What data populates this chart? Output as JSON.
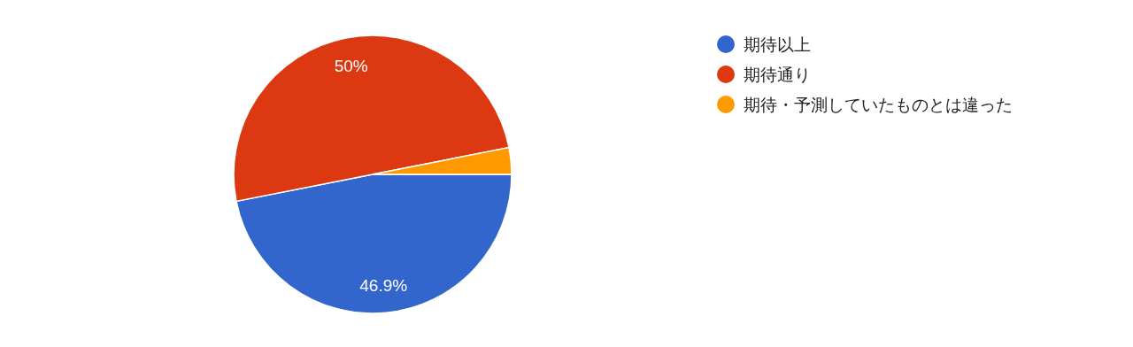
{
  "chart_data": {
    "type": "pie",
    "categories": [
      "期待以上",
      "期待通り",
      "期待・予測していたものとは違った"
    ],
    "values": [
      46.9,
      50,
      3.1
    ],
    "colors": [
      "#3366cc",
      "#dc3912",
      "#ff9900"
    ],
    "value_labels": [
      "46.9%",
      "50%",
      null
    ],
    "legend": "right"
  }
}
